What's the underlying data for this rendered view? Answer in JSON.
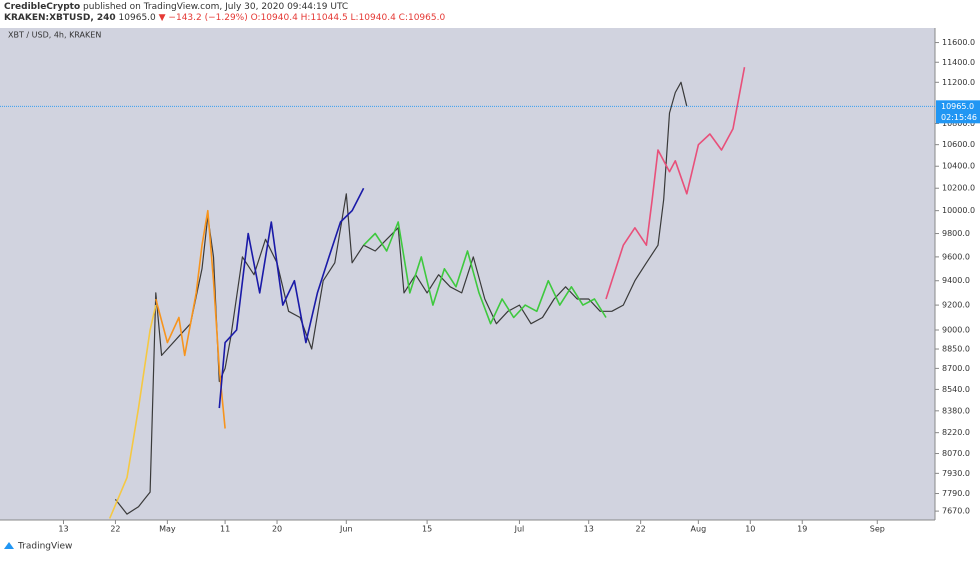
{
  "header": {
    "author": "CredibleCrypto",
    "published": "published on TradingView.com, July 30, 2020 09:44:19 UTC",
    "symbol": "KRAKEN:XBTUSD, 240",
    "last": "10965.0",
    "change": "▼ −143.2 (−1.29%)",
    "ohlc": "O:10940.4 H:11044.5 L:10940.4 C:10965.0"
  },
  "footer": "TradingView",
  "chart_data": {
    "type": "line",
    "annotation": "XBT / USD, 4h, KRAKEN",
    "xlim": [
      "Apr 2",
      "Sep 11"
    ],
    "xticks": [
      {
        "value": "Apr 13",
        "label": "13"
      },
      {
        "value": "Apr 22",
        "label": "22"
      },
      {
        "value": "May 1",
        "label": "May"
      },
      {
        "value": "May 11",
        "label": "11"
      },
      {
        "value": "May 20",
        "label": "20"
      },
      {
        "value": "Jun 1",
        "label": "Jun"
      },
      {
        "value": "Jun 15",
        "label": "15"
      },
      {
        "value": "Jul 1",
        "label": "Jul"
      },
      {
        "value": "Jul 13",
        "label": "13"
      },
      {
        "value": "Jul 22",
        "label": "22"
      },
      {
        "value": "Aug 1",
        "label": "Aug"
      },
      {
        "value": "Aug 10",
        "label": "10"
      },
      {
        "value": "Aug 19",
        "label": "19"
      },
      {
        "value": "Sep 1",
        "label": "Sep"
      }
    ],
    "ylim": [
      7610,
      11750
    ],
    "log_scale": true,
    "grid": false,
    "yticks": [
      {
        "value": 11600,
        "label": "11600.0"
      },
      {
        "value": 11400,
        "label": "11400.0"
      },
      {
        "value": 11200,
        "label": "11200.0"
      },
      {
        "value": 10800,
        "label": "10800.0"
      },
      {
        "value": 10600,
        "label": "10600.0"
      },
      {
        "value": 10400,
        "label": "10400.0"
      },
      {
        "value": 10200,
        "label": "10200.0"
      },
      {
        "value": 10000,
        "label": "10000.0"
      },
      {
        "value": 9800,
        "label": "9800.0"
      },
      {
        "value": 9600,
        "label": "9600.0"
      },
      {
        "value": 9400,
        "label": "9400.0"
      },
      {
        "value": 9200,
        "label": "9200.0"
      },
      {
        "value": 9000,
        "label": "9000.0"
      },
      {
        "value": 8850,
        "label": "8850.0"
      },
      {
        "value": 8700,
        "label": "8700.0"
      },
      {
        "value": 8540,
        "label": "8540.0"
      },
      {
        "value": 8380,
        "label": "8380.0"
      },
      {
        "value": 8220,
        "label": "8220.0"
      },
      {
        "value": 8070,
        "label": "8070.0"
      },
      {
        "value": 7930,
        "label": "7930.0"
      },
      {
        "value": 7790,
        "label": "7790.0"
      },
      {
        "value": 7670,
        "label": "7670.0"
      }
    ],
    "last_price": {
      "value": 10965,
      "label": "10965.0",
      "color": "#2196f3"
    },
    "countdown": "02:15:46",
    "series": [
      {
        "color": "#3a3a3a",
        "x": [
          "Apr 22",
          "Apr 24",
          "Apr 26",
          "Apr 27",
          "Apr 28",
          "Apr 29",
          "Apr 30",
          "May 1",
          "May 3",
          "May 5",
          "May 7",
          "May 8",
          "May 9",
          "May 10",
          "May 11",
          "May 12",
          "May 14",
          "May 16",
          "May 18",
          "May 20",
          "May 22",
          "May 24",
          "May 26",
          "May 28",
          "May 30",
          "Jun 1",
          "Jun 2",
          "Jun 4",
          "Jun 6",
          "Jun 8",
          "Jun 10",
          "Jun 11",
          "Jun 13",
          "Jun 15",
          "Jun 17",
          "Jun 19",
          "Jun 21",
          "Jun 23",
          "Jun 25",
          "Jun 27",
          "Jun 29",
          "Jul 1",
          "Jul 3",
          "Jul 5",
          "Jul 7",
          "Jul 9",
          "Jul 11",
          "Jul 13",
          "Jul 15",
          "Jul 17",
          "Jul 19",
          "Jul 21",
          "Jul 23",
          "Jul 25",
          "Jul 26",
          "Jul 27",
          "Jul 28",
          "Jul 29",
          "Jul 30"
        ],
        "values": [
          7750,
          7650,
          7700,
          7750,
          7800,
          9300,
          8800,
          8850,
          8950,
          9050,
          9500,
          9950,
          9600,
          8600,
          8700,
          8950,
          9600,
          9450,
          9750,
          9550,
          9150,
          9100,
          8850,
          9400,
          9550,
          10150,
          9550,
          9700,
          9650,
          9750,
          9850,
          9300,
          9450,
          9300,
          9450,
          9350,
          9300,
          9600,
          9250,
          9050,
          9150,
          9200,
          9050,
          9100,
          9250,
          9350,
          9250,
          9250,
          9150,
          9150,
          9200,
          9400,
          9550,
          9700,
          10100,
          10900,
          11100,
          11200,
          10965
        ]
      },
      {
        "color": "#f5c842",
        "x": [
          "Apr 21",
          "Apr 24",
          "Apr 26",
          "Apr 28",
          "Apr 29"
        ],
        "values": [
          7620,
          7900,
          8400,
          9000,
          9200
        ]
      },
      {
        "color": "#f7941d",
        "x": [
          "Apr 29",
          "May 1",
          "May 3",
          "May 4",
          "May 6",
          "May 7",
          "May 8",
          "May 9",
          "May 10",
          "May 11"
        ],
        "values": [
          9250,
          8900,
          9100,
          8800,
          9300,
          9700,
          10000,
          9400,
          8700,
          8250
        ]
      },
      {
        "color": "#1a1aa8",
        "x": [
          "May 10",
          "May 11",
          "May 13",
          "May 15",
          "May 17",
          "May 19",
          "May 21",
          "May 23",
          "May 25",
          "May 27",
          "May 29",
          "May 31",
          "Jun 2",
          "Jun 4"
        ],
        "values": [
          8400,
          8900,
          9000,
          9800,
          9300,
          9900,
          9200,
          9400,
          8900,
          9300,
          9600,
          9900,
          10000,
          10200
        ]
      },
      {
        "color": "#3ec93e",
        "x": [
          "Jun 4",
          "Jun 6",
          "Jun 8",
          "Jun 10",
          "Jun 12",
          "Jun 14",
          "Jun 16",
          "Jun 18",
          "Jun 20",
          "Jun 22",
          "Jun 24",
          "Jun 26",
          "Jun 28",
          "Jun 30",
          "Jul 2",
          "Jul 4",
          "Jul 6",
          "Jul 8",
          "Jul 10",
          "Jul 12",
          "Jul 14",
          "Jul 16"
        ],
        "values": [
          9700,
          9800,
          9650,
          9900,
          9300,
          9600,
          9200,
          9500,
          9350,
          9650,
          9300,
          9050,
          9250,
          9100,
          9200,
          9150,
          9400,
          9200,
          9350,
          9200,
          9250,
          9100
        ]
      },
      {
        "color": "#e8507a",
        "x": [
          "Jul 16",
          "Jul 19",
          "Jul 21",
          "Jul 23",
          "Jul 24",
          "Jul 25",
          "Jul 27",
          "Jul 28",
          "Jul 30",
          "Aug 1",
          "Aug 3",
          "Aug 5",
          "Aug 7",
          "Aug 9"
        ],
        "values": [
          9250,
          9700,
          9850,
          9700,
          10100,
          10550,
          10350,
          10450,
          10150,
          10600,
          10700,
          10550,
          10750,
          11350
        ]
      }
    ]
  }
}
